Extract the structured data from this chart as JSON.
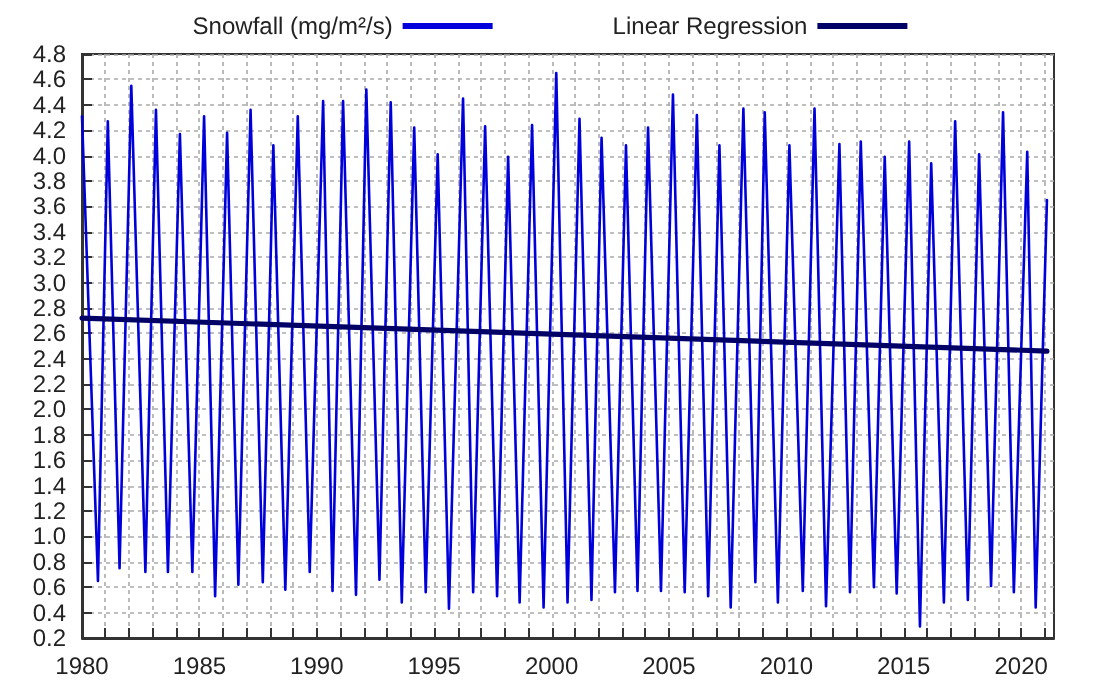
{
  "chart_data": {
    "type": "line",
    "series": [
      {
        "name": "Snowfall (mg/m²/s)",
        "color": "#0000dd",
        "x": [
          1980.0,
          1980.68,
          1981.1,
          1981.6,
          1982.1,
          1982.7,
          1983.15,
          1983.66,
          1984.17,
          1984.7,
          1985.2,
          1985.67,
          1986.18,
          1986.66,
          1987.18,
          1987.7,
          1988.15,
          1988.66,
          1989.19,
          1989.7,
          1990.27,
          1990.67,
          1991.12,
          1991.67,
          1992.11,
          1992.67,
          1993.15,
          1993.62,
          1994.15,
          1994.64,
          1995.15,
          1995.63,
          1996.23,
          1996.66,
          1997.17,
          1997.68,
          1998.15,
          1998.64,
          1999.17,
          1999.66,
          2000.2,
          2000.68,
          2001.19,
          2001.7,
          2002.13,
          2002.7,
          2003.17,
          2003.66,
          2004.11,
          2004.66,
          2005.17,
          2005.67,
          2006.19,
          2006.67,
          2007.15,
          2007.63,
          2008.17,
          2008.68,
          2009.08,
          2009.64,
          2010.13,
          2010.7,
          2011.2,
          2011.69,
          2012.26,
          2012.71,
          2013.17,
          2013.73,
          2014.19,
          2014.7,
          2015.23,
          2015.69,
          2016.17,
          2016.71,
          2017.19,
          2017.73,
          2018.21,
          2018.72,
          2019.23,
          2019.69,
          2020.26,
          2020.62,
          2021.1
        ],
        "values": [
          4.31,
          0.65,
          4.27,
          0.75,
          4.55,
          0.72,
          4.36,
          0.72,
          4.17,
          0.72,
          4.31,
          0.53,
          4.18,
          0.62,
          4.36,
          0.64,
          4.08,
          0.58,
          4.31,
          0.72,
          4.43,
          0.57,
          4.43,
          0.54,
          4.52,
          0.66,
          4.42,
          0.48,
          4.22,
          0.56,
          4.01,
          0.43,
          4.45,
          0.56,
          4.23,
          0.53,
          3.99,
          0.48,
          4.24,
          0.44,
          4.65,
          0.48,
          4.29,
          0.5,
          4.14,
          0.56,
          4.08,
          0.57,
          4.22,
          0.57,
          4.48,
          0.56,
          4.32,
          0.53,
          4.08,
          0.44,
          4.37,
          0.64,
          4.34,
          0.48,
          4.08,
          0.57,
          4.37,
          0.45,
          4.09,
          0.56,
          4.11,
          0.6,
          3.99,
          0.55,
          4.11,
          0.29,
          3.94,
          0.48,
          4.27,
          0.5,
          4.01,
          0.61,
          4.34,
          0.56,
          4.03,
          0.44,
          3.65
        ]
      },
      {
        "name": "Linear Regression",
        "color": "#000066",
        "x": [
          1980.0,
          2021.1
        ],
        "values": [
          2.72,
          2.46
        ]
      }
    ],
    "xlim": [
      1980,
      2021.4
    ],
    "xticks": [
      1980,
      {
        "value": 1981,
        "label": null
      },
      {
        "value": 1982,
        "label": null
      },
      {
        "value": 1983,
        "label": null
      },
      {
        "value": 1984,
        "label": null
      },
      1985,
      {
        "value": 1986,
        "label": null
      },
      {
        "value": 1987,
        "label": null
      },
      {
        "value": 1988,
        "label": null
      },
      {
        "value": 1989,
        "label": null
      },
      1990,
      {
        "value": 1991,
        "label": null
      },
      {
        "value": 1992,
        "label": null
      },
      {
        "value": 1993,
        "label": null
      },
      {
        "value": 1994,
        "label": null
      },
      1995,
      {
        "value": 1996,
        "label": null
      },
      {
        "value": 1997,
        "label": null
      },
      {
        "value": 1998,
        "label": null
      },
      {
        "value": 1999,
        "label": null
      },
      2000,
      {
        "value": 2001,
        "label": null
      },
      {
        "value": 2002,
        "label": null
      },
      {
        "value": 2003,
        "label": null
      },
      {
        "value": 2004,
        "label": null
      },
      2005,
      {
        "value": 2006,
        "label": null
      },
      {
        "value": 2007,
        "label": null
      },
      {
        "value": 2008,
        "label": null
      },
      {
        "value": 2009,
        "label": null
      },
      2010,
      {
        "value": 2011,
        "label": null
      },
      {
        "value": 2012,
        "label": null
      },
      {
        "value": 2013,
        "label": null
      },
      {
        "value": 2014,
        "label": null
      },
      2015,
      {
        "value": 2016,
        "label": null
      },
      {
        "value": 2017,
        "label": null
      },
      {
        "value": 2018,
        "label": null
      },
      {
        "value": 2019,
        "label": null
      },
      2020,
      {
        "value": 2021,
        "label": null
      }
    ],
    "ylim": [
      0.2,
      4.8
    ],
    "yticks": [
      0.2,
      0.4,
      0.6,
      0.8,
      {
        "value": 1,
        "label": "1.0"
      },
      1.2,
      1.4,
      1.6,
      1.8,
      {
        "value": 2,
        "label": "2.0"
      },
      2.2,
      2.4,
      2.6,
      2.8,
      {
        "value": 3,
        "label": "3.0"
      },
      3.2,
      3.4,
      3.6,
      3.8,
      {
        "value": 4,
        "label": "4.0"
      },
      4.2,
      4.4,
      4.6,
      4.8
    ],
    "grid": true,
    "legend": "top",
    "marker": "none",
    "line_style": "solid"
  }
}
